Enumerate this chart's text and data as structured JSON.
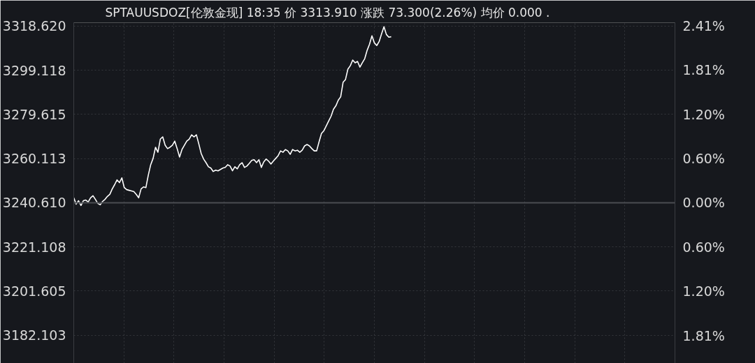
{
  "chart_data": {
    "type": "line",
    "title": "SPTAUUSDOZ[伦敦金现] 18:35 价 3313.910 涨跌 73.300(2.26%) 均价 0.000 .",
    "categories": [
      null,
      null,
      null,
      null,
      null,
      null,
      null,
      null,
      null,
      null,
      null,
      null,
      null,
      null,
      null,
      null,
      null,
      null,
      null,
      null,
      null,
      null,
      null,
      null,
      null,
      null,
      null,
      null,
      null,
      null,
      null,
      null,
      null,
      null,
      null,
      null,
      null,
      null,
      null,
      null,
      null,
      null,
      null,
      null,
      null,
      null,
      null,
      null,
      null,
      null,
      null,
      null,
      null,
      null,
      null,
      null,
      null,
      null,
      null,
      null,
      null,
      null,
      null,
      null,
      null,
      null,
      null,
      null,
      null,
      null,
      null,
      null,
      null,
      null,
      null,
      null,
      null,
      null,
      null,
      null,
      null,
      null,
      null,
      null,
      null,
      null,
      null,
      null,
      null,
      null,
      null,
      null,
      null,
      null,
      null,
      null,
      null,
      null,
      null,
      null,
      null,
      null,
      null,
      null,
      null,
      null,
      null,
      null,
      null,
      null,
      null,
      null,
      null,
      null,
      null,
      null,
      null,
      null,
      null,
      null,
      null,
      null,
      null,
      null,
      null,
      null,
      null,
      null,
      null,
      null,
      null,
      null,
      null,
      null,
      null,
      null,
      null,
      null,
      null,
      null,
      null,
      null,
      null,
      null,
      null,
      null,
      null,
      null,
      null,
      null,
      null,
      null,
      null,
      null,
      null,
      null,
      null,
      null,
      null,
      null,
      null,
      null,
      null,
      null,
      null,
      null,
      null,
      null,
      null,
      null,
      null,
      null,
      null,
      null,
      null,
      null,
      null,
      null,
      null,
      null,
      null,
      null,
      null,
      null,
      null,
      null,
      null,
      null,
      null,
      null,
      null,
      null,
      null,
      null,
      null,
      null,
      null,
      null,
      null,
      null,
      null,
      null,
      null,
      null,
      null,
      null,
      null,
      null,
      null,
      null,
      null,
      null,
      null,
      null,
      null,
      null,
      null,
      null,
      null,
      null,
      null,
      null,
      null,
      null,
      null,
      null,
      null,
      null,
      null,
      null,
      null,
      null,
      null,
      null,
      null,
      null,
      null,
      null,
      null,
      null,
      null,
      null,
      null,
      null,
      null,
      null,
      null,
      null,
      null,
      null,
      null
    ],
    "series": [
      {
        "color": "#ffffff",
        "values": [
          3242.8,
          3240.0,
          3241.5,
          3239.4,
          3241.5,
          3241.8,
          3240.9,
          3242.8,
          3243.7,
          3242.1,
          3240.3,
          3239.7,
          3241.2,
          3242.1,
          3243.4,
          3244.3,
          3246.7,
          3248.6,
          3250.7,
          3249.5,
          3251.6,
          3247.3,
          3246.4,
          3246.1,
          3245.8,
          3245.5,
          3244.3,
          3242.8,
          3246.7,
          3247.6,
          3247.3,
          3252.8,
          3257.4,
          3260.2,
          3265.1,
          3262.9,
          3268.7,
          3269.7,
          3266.0,
          3264.5,
          3265.1,
          3266.0,
          3267.8,
          3264.5,
          3260.8,
          3264.1,
          3266.0,
          3267.8,
          3268.7,
          3270.6,
          3269.7,
          3270.6,
          3266.6,
          3262.3,
          3259.9,
          3258.3,
          3256.5,
          3255.9,
          3254.4,
          3255.0,
          3254.7,
          3255.3,
          3255.9,
          3256.2,
          3257.4,
          3256.8,
          3254.7,
          3256.5,
          3255.6,
          3257.4,
          3258.3,
          3256.2,
          3256.8,
          3258.0,
          3259.3,
          3259.6,
          3258.3,
          3259.6,
          3256.2,
          3258.6,
          3259.9,
          3259.0,
          3257.7,
          3259.0,
          3260.2,
          3261.4,
          3263.5,
          3262.9,
          3264.1,
          3263.5,
          3262.0,
          3264.1,
          3263.5,
          3263.8,
          3262.9,
          3263.8,
          3265.7,
          3266.3,
          3265.7,
          3264.5,
          3263.5,
          3263.5,
          3267.5,
          3271.2,
          3272.4,
          3274.5,
          3276.7,
          3278.8,
          3281.9,
          3283.4,
          3285.9,
          3287.4,
          3293.8,
          3295.0,
          3299.6,
          3301.1,
          3303.6,
          3302.4,
          3303.0,
          3300.5,
          3302.4,
          3304.2,
          3307.9,
          3310.6,
          3314.3,
          3311.2,
          3310.0,
          3311.8,
          3315.2,
          3318.3,
          3314.9,
          3313.7,
          3313.9,
          null,
          null,
          null,
          null,
          null,
          null,
          null,
          null,
          null,
          null,
          null,
          null,
          null,
          null,
          null,
          null,
          null,
          null,
          null,
          null,
          null,
          null,
          null,
          null,
          null,
          null,
          null,
          null,
          null,
          null,
          null,
          null,
          null,
          null,
          null,
          null,
          null,
          null,
          null,
          null,
          null,
          null,
          null,
          null,
          null,
          null,
          null,
          null,
          null,
          null,
          null,
          null,
          null,
          null,
          null,
          null,
          null,
          null,
          null,
          null,
          null,
          null,
          null,
          null,
          null,
          null,
          null,
          null,
          null,
          null,
          null,
          null,
          null,
          null,
          null,
          null,
          null,
          null,
          null,
          null,
          null,
          null,
          null,
          null,
          null,
          null,
          null,
          null,
          null,
          null,
          null,
          null,
          null,
          null,
          null,
          null,
          null,
          null,
          null,
          null,
          null,
          null,
          null,
          null,
          null,
          null,
          null,
          null,
          null,
          null,
          null,
          null,
          null,
          null,
          null,
          null,
          null,
          null
        ]
      }
    ],
    "ylim": [
      3169.7,
      3320.1
    ],
    "yticks": [
      {
        "value": 3182.103,
        "label": "3182.103"
      },
      {
        "value": 3201.605,
        "label": "3201.605"
      },
      {
        "value": 3221.108,
        "label": "3221.108"
      },
      {
        "value": 3240.61,
        "label": "3240.610"
      },
      {
        "value": 3260.113,
        "label": "3260.113"
      },
      {
        "value": 3279.615,
        "label": "3279.615"
      },
      {
        "value": 3299.118,
        "label": "3299.118"
      },
      {
        "value": 3318.62,
        "label": "3318.620"
      }
    ],
    "y2lim": [
      -2.188,
      2.453
    ],
    "y2ticks": [
      {
        "value": -1.81,
        "label": "1.81%"
      },
      {
        "value": -1.2,
        "label": "1.20%"
      },
      {
        "value": -0.6,
        "label": "0.60%"
      },
      {
        "value": 0,
        "label": "0.00%"
      },
      {
        "value": 0.6,
        "label": "0.60%"
      },
      {
        "value": 1.2,
        "label": "1.20%"
      },
      {
        "value": 1.81,
        "label": "1.81%"
      },
      {
        "value": 2.41,
        "label": "2.41%"
      }
    ],
    "ref_lines": [
      {
        "axis": "y",
        "value": 3240.61,
        "label": null,
        "color": "#4a4d52"
      }
    ],
    "grid": true,
    "tick_labels": "y",
    "line_style": "solid",
    "marker": "none"
  }
}
